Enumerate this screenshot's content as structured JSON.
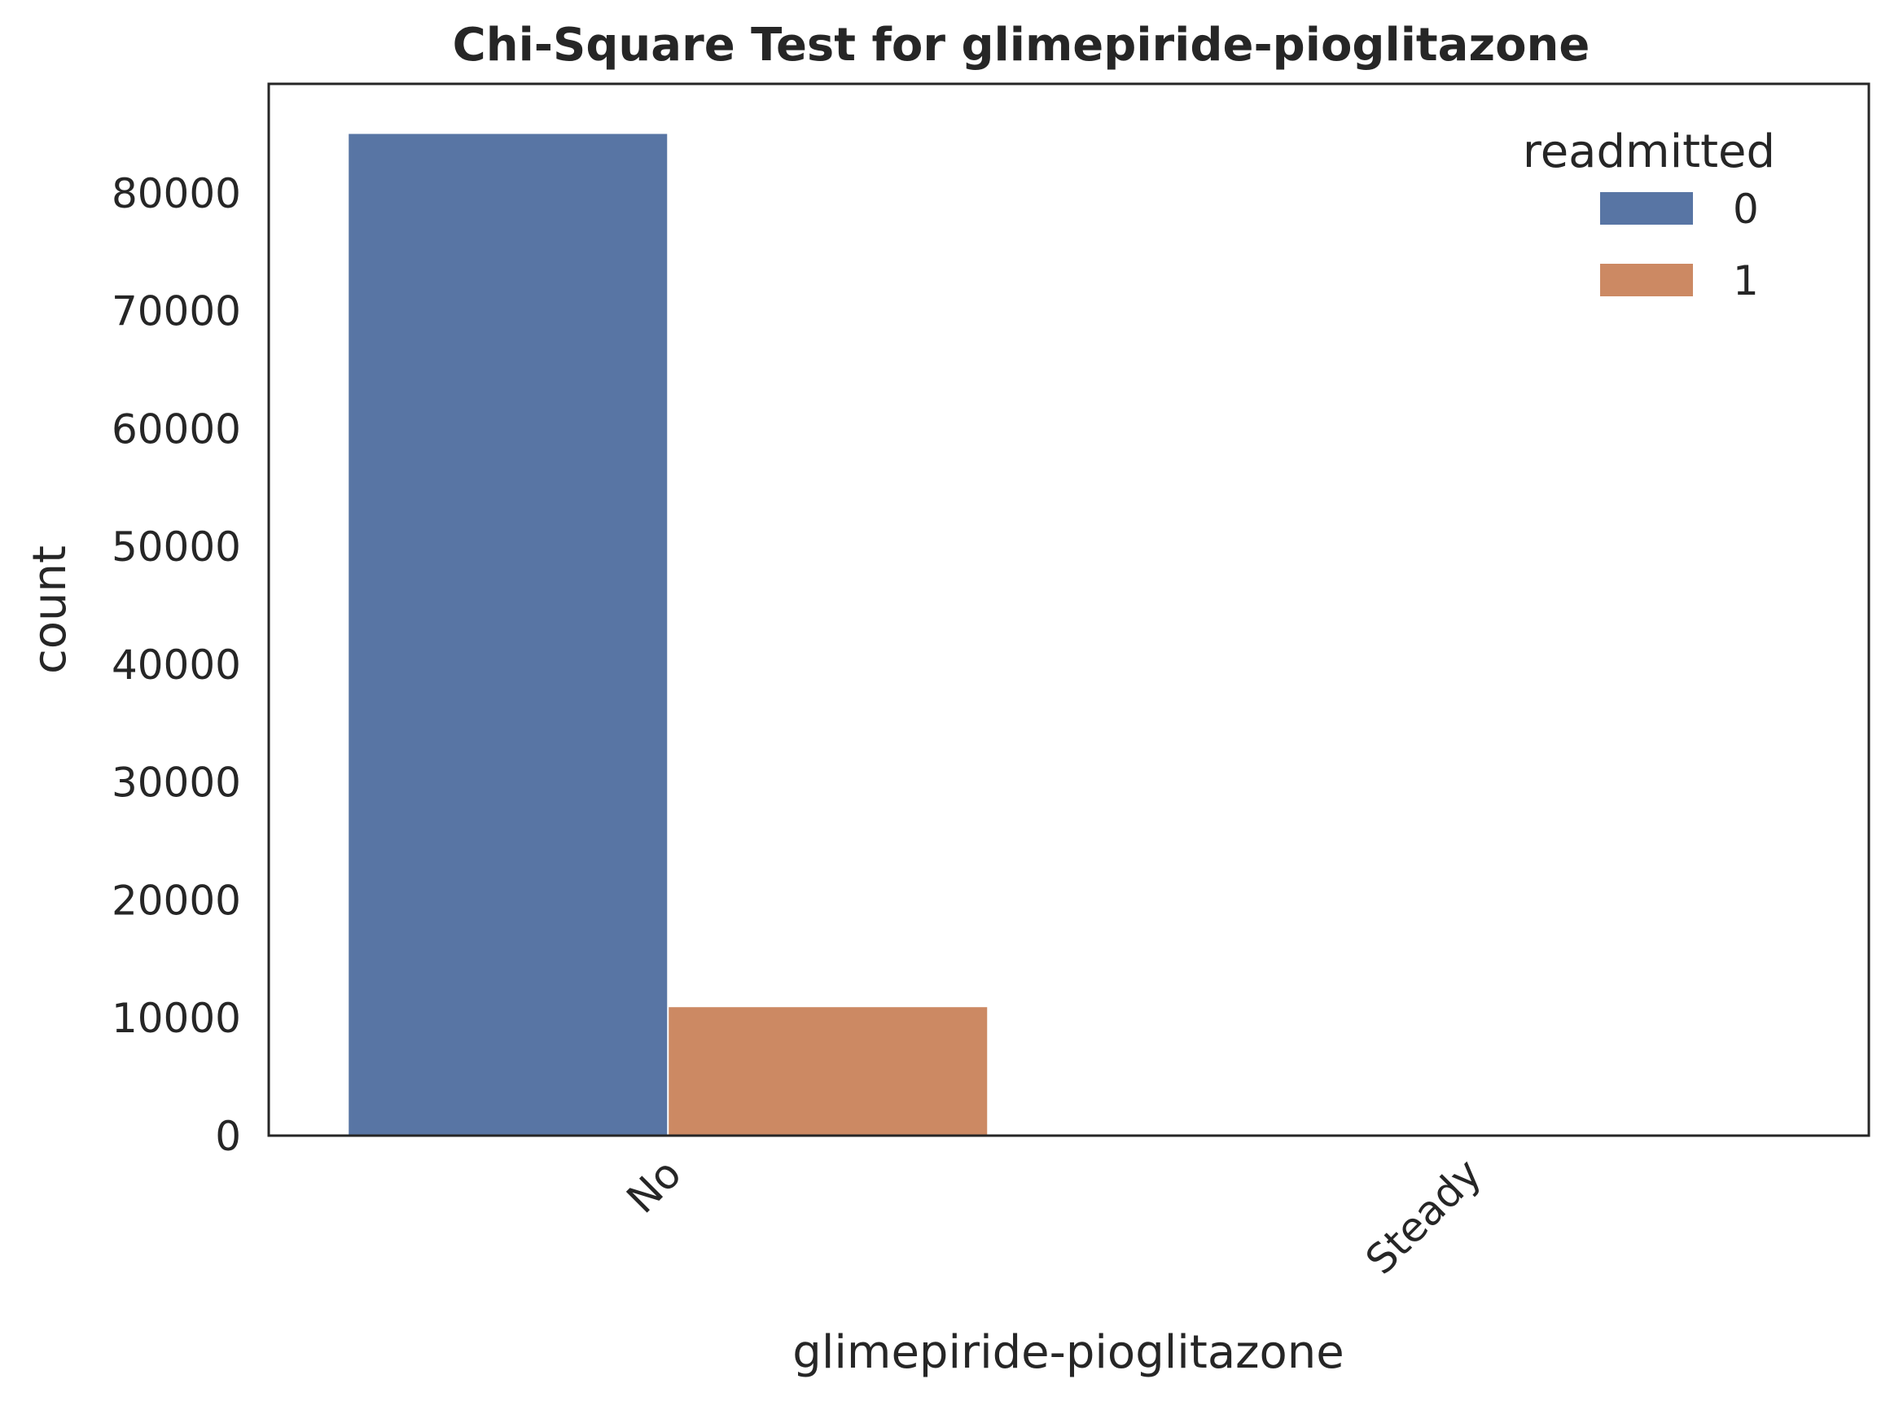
{
  "chart_data": {
    "type": "bar",
    "title": "Chi-Square Test for glimepiride-pioglitazone",
    "xlabel": "glimepiride-pioglitazone",
    "ylabel": "count",
    "categories": [
      "No",
      "Steady"
    ],
    "series": [
      {
        "name": "0",
        "values": [
          85000,
          1
        ],
        "color": "#5875a4"
      },
      {
        "name": "1",
        "values": [
          10900,
          0
        ],
        "color": "#cc8963"
      }
    ],
    "yticks": [
      0,
      10000,
      20000,
      30000,
      40000,
      50000,
      60000,
      70000,
      80000
    ],
    "ytick_labels": [
      "0",
      "10000",
      "20000",
      "30000",
      "40000",
      "50000",
      "60000",
      "70000",
      "80000"
    ],
    "ylim": [
      0,
      89250
    ],
    "legend_title": "readmitted",
    "legend_position": "top-right",
    "grid": false,
    "xtick_rotation": -45
  }
}
